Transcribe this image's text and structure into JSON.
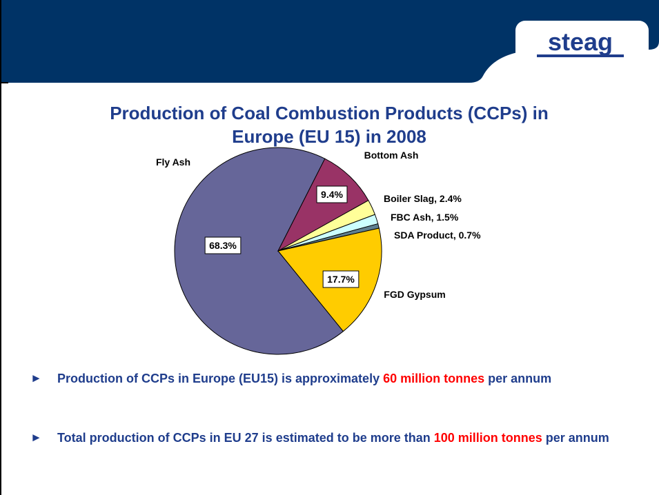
{
  "logo": "steag",
  "chart_data": {
    "type": "pie",
    "title": [
      "Production of Coal Combustion Products (CCPs) in",
      "Europe (EU 15) in 2008"
    ],
    "categories": [
      "Fly Ash",
      "Bottom Ash",
      "Boiler Slag",
      "FBC Ash",
      "SDA Product",
      "FGD Gypsum"
    ],
    "values": [
      68.3,
      9.4,
      2.4,
      1.5,
      0.7,
      17.7
    ],
    "value_labels": [
      "68.3%",
      "9.4%",
      "2.4%",
      "1.5%",
      "0.7%",
      "17.7%"
    ],
    "label_separator": ", ",
    "colors": [
      "#666699",
      "#993366",
      "#ffff99",
      "#ccffff",
      "#5f8091",
      "#ffcc00"
    ]
  },
  "bullets": [
    {
      "marker": "►",
      "before": "Production of CCPs in Europe (EU15) is approximately ",
      "highlight": "60 million tonnes",
      "after": " per annum"
    },
    {
      "marker": "►",
      "before": "Total production of CCPs in EU 27 is estimated to be more than ",
      "highlight": "100 million tonnes",
      "after": " per annum"
    }
  ]
}
